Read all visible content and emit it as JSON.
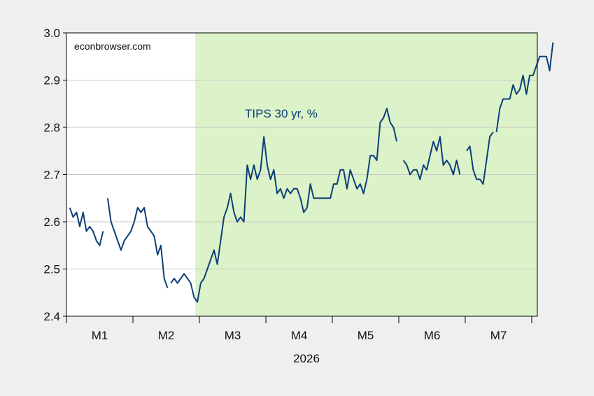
{
  "chart_data": {
    "type": "line",
    "title": "",
    "xlabel": "2026",
    "ylabel": "",
    "watermark": "econbrowser.com",
    "series_label": "TIPS 30 yr, %",
    "ylim": [
      2.4,
      3.0
    ],
    "yticks": [
      "2.4",
      "2.5",
      "2.6",
      "2.7",
      "2.8",
      "2.9",
      "3.0"
    ],
    "month_labels": [
      "M1",
      "M2",
      "M3",
      "M4",
      "M5",
      "M6",
      "M7"
    ],
    "x_units": "months since start of 2026 (0 = start of M1)",
    "xlim": [
      0,
      7.0
    ],
    "shaded_region": {
      "from": 1.95,
      "to": 7.0,
      "color": "#dcf2c8"
    },
    "grid": "horizontal",
    "series": [
      {
        "name": "TIPS 30 yr, %",
        "color": "#0c3f78",
        "points": [
          [
            0.05,
            2.63
          ],
          [
            0.1,
            2.61
          ],
          [
            0.15,
            2.62
          ],
          [
            0.2,
            2.59
          ],
          [
            0.25,
            2.62
          ],
          [
            0.3,
            2.58
          ],
          [
            0.35,
            2.59
          ],
          [
            0.4,
            2.58
          ],
          [
            0.45,
            2.56
          ],
          [
            0.5,
            2.55
          ],
          [
            0.55,
            2.58
          ],
          null,
          [
            0.62,
            2.65
          ],
          [
            0.67,
            2.6
          ],
          [
            0.72,
            2.58
          ],
          [
            0.77,
            2.56
          ],
          [
            0.82,
            2.54
          ],
          [
            0.87,
            2.56
          ],
          [
            0.92,
            2.57
          ],
          [
            0.97,
            2.58
          ],
          [
            1.02,
            2.6
          ],
          [
            1.07,
            2.63
          ],
          [
            1.12,
            2.62
          ],
          [
            1.17,
            2.63
          ],
          [
            1.22,
            2.59
          ],
          [
            1.27,
            2.58
          ],
          [
            1.32,
            2.57
          ],
          [
            1.37,
            2.53
          ],
          [
            1.42,
            2.55
          ],
          [
            1.47,
            2.48
          ],
          [
            1.52,
            2.46
          ],
          null,
          [
            1.57,
            2.47
          ],
          [
            1.62,
            2.48
          ],
          [
            1.67,
            2.47
          ],
          [
            1.72,
            2.48
          ],
          [
            1.77,
            2.49
          ],
          [
            1.82,
            2.48
          ],
          [
            1.87,
            2.47
          ],
          [
            1.92,
            2.44
          ],
          [
            1.97,
            2.43
          ],
          [
            2.02,
            2.47
          ],
          [
            2.07,
            2.48
          ],
          [
            2.12,
            2.5
          ],
          [
            2.17,
            2.52
          ],
          [
            2.22,
            2.54
          ],
          [
            2.27,
            2.51
          ],
          [
            2.32,
            2.56
          ],
          [
            2.37,
            2.61
          ],
          [
            2.42,
            2.63
          ],
          [
            2.47,
            2.66
          ],
          [
            2.52,
            2.62
          ],
          [
            2.57,
            2.6
          ],
          [
            2.62,
            2.61
          ],
          [
            2.67,
            2.6
          ],
          [
            2.72,
            2.72
          ],
          [
            2.77,
            2.69
          ],
          [
            2.82,
            2.72
          ],
          [
            2.87,
            2.69
          ],
          [
            2.92,
            2.71
          ],
          [
            2.97,
            2.78
          ],
          [
            3.02,
            2.72
          ],
          [
            3.07,
            2.69
          ],
          [
            3.12,
            2.71
          ],
          [
            3.17,
            2.66
          ],
          [
            3.22,
            2.67
          ],
          [
            3.27,
            2.65
          ],
          [
            3.32,
            2.67
          ],
          [
            3.37,
            2.66
          ],
          [
            3.42,
            2.67
          ],
          [
            3.47,
            2.67
          ],
          [
            3.52,
            2.65
          ],
          [
            3.57,
            2.62
          ],
          [
            3.62,
            2.63
          ],
          [
            3.67,
            2.68
          ],
          [
            3.72,
            2.65
          ],
          [
            3.77,
            2.65
          ],
          [
            3.82,
            2.65
          ],
          [
            3.87,
            2.65
          ],
          [
            3.92,
            2.65
          ],
          [
            3.97,
            2.65
          ],
          [
            4.02,
            2.68
          ],
          [
            4.07,
            2.68
          ],
          [
            4.12,
            2.71
          ],
          [
            4.17,
            2.71
          ],
          [
            4.22,
            2.67
          ],
          [
            4.27,
            2.71
          ],
          [
            4.32,
            2.69
          ],
          [
            4.37,
            2.67
          ],
          [
            4.42,
            2.68
          ],
          [
            4.47,
            2.66
          ],
          [
            4.52,
            2.69
          ],
          [
            4.57,
            2.74
          ],
          [
            4.62,
            2.74
          ],
          [
            4.67,
            2.73
          ],
          [
            4.72,
            2.81
          ],
          [
            4.77,
            2.82
          ],
          [
            4.82,
            2.84
          ],
          [
            4.87,
            2.81
          ],
          [
            4.92,
            2.8
          ],
          [
            4.97,
            2.77
          ],
          null,
          [
            5.07,
            2.73
          ],
          [
            5.12,
            2.72
          ],
          [
            5.17,
            2.7
          ],
          [
            5.22,
            2.71
          ],
          [
            5.27,
            2.71
          ],
          [
            5.32,
            2.69
          ],
          [
            5.37,
            2.72
          ],
          [
            5.42,
            2.71
          ],
          [
            5.47,
            2.74
          ],
          [
            5.52,
            2.77
          ],
          [
            5.57,
            2.75
          ],
          [
            5.62,
            2.78
          ],
          [
            5.67,
            2.72
          ],
          [
            5.72,
            2.73
          ],
          [
            5.77,
            2.72
          ],
          [
            5.82,
            2.7
          ],
          [
            5.87,
            2.73
          ],
          [
            5.92,
            2.7
          ],
          null,
          [
            6.02,
            2.75
          ],
          [
            6.07,
            2.76
          ],
          [
            6.12,
            2.71
          ],
          [
            6.17,
            2.69
          ],
          [
            6.22,
            2.69
          ],
          [
            6.27,
            2.68
          ],
          [
            6.32,
            2.73
          ],
          [
            6.37,
            2.78
          ],
          [
            6.42,
            2.79
          ],
          null,
          [
            6.47,
            2.79
          ],
          [
            6.52,
            2.84
          ],
          [
            6.57,
            2.86
          ],
          [
            6.62,
            2.86
          ],
          [
            6.67,
            2.86
          ],
          [
            6.72,
            2.89
          ],
          [
            6.77,
            2.87
          ],
          [
            6.82,
            2.88
          ],
          [
            6.87,
            2.91
          ],
          [
            6.92,
            2.87
          ],
          [
            6.97,
            2.91
          ],
          [
            7.02,
            2.91
          ],
          [
            7.07,
            2.93
          ],
          [
            7.12,
            2.95
          ],
          [
            7.17,
            2.95
          ],
          [
            7.22,
            2.95
          ],
          [
            7.27,
            2.92
          ],
          [
            7.32,
            2.98
          ]
        ]
      }
    ]
  }
}
